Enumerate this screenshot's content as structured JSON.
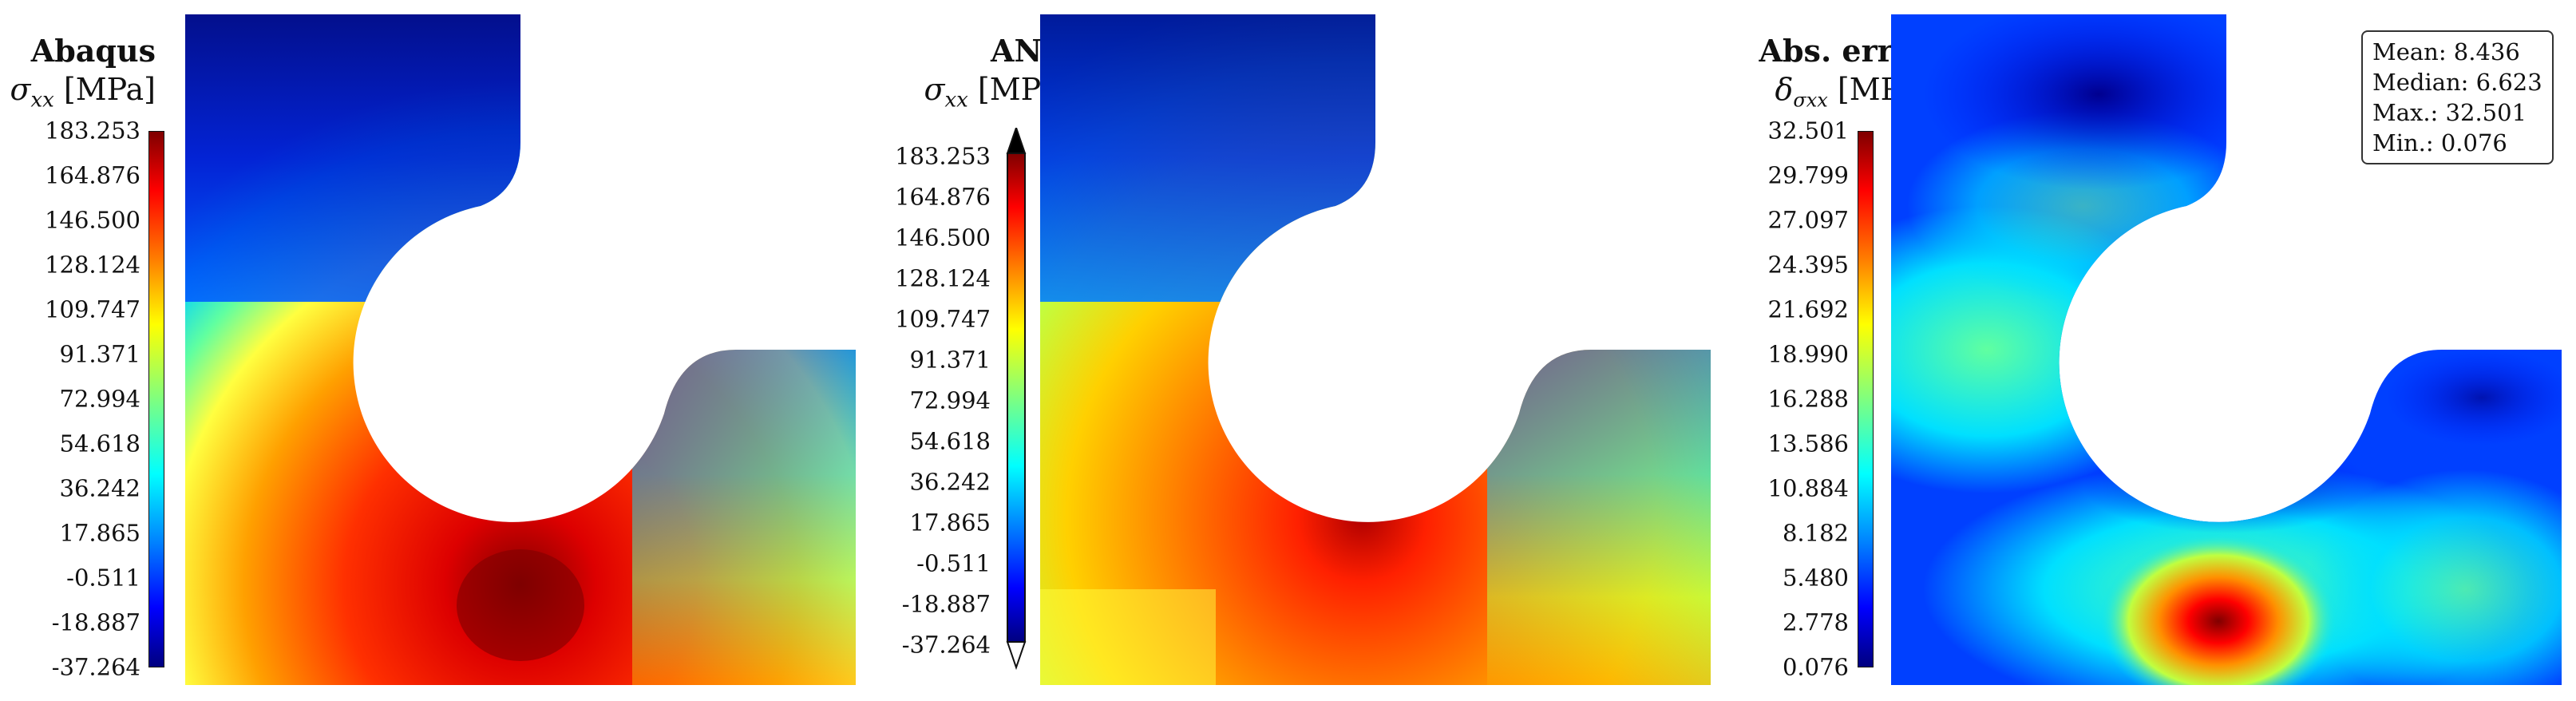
{
  "chart_data": [
    {
      "type": "heatmap",
      "title": "Abaqus",
      "quantity_label": "σ",
      "quantity_subscript": "xx",
      "unit": "[MPa]",
      "colorbar_ticks": [
        "183.253",
        "164.876",
        "146.500",
        "128.124",
        "109.747",
        "91.371",
        "72.994",
        "54.618",
        "36.242",
        "17.865",
        "-0.511",
        "-18.887",
        "-37.264"
      ],
      "colorbar_range": [
        -37.264,
        183.253
      ],
      "colormap": "jet"
    },
    {
      "type": "heatmap",
      "title": "ANN",
      "quantity_label": "σ",
      "quantity_subscript": "xx",
      "unit": "[MPa]",
      "colorbar_ticks": [
        "183.253",
        "164.876",
        "146.500",
        "128.124",
        "109.747",
        "91.371",
        "72.994",
        "54.618",
        "36.242",
        "17.865",
        "-0.511",
        "-18.887",
        "-37.264"
      ],
      "colorbar_range": [
        -37.264,
        183.253
      ],
      "colormap": "jet",
      "colorbar_extend": "both"
    },
    {
      "type": "heatmap",
      "title": "Abs. error",
      "quantity_label": "δ",
      "quantity_subscript": "σxx",
      "unit": "[MPa]",
      "colorbar_ticks": [
        "32.501",
        "29.799",
        "27.097",
        "24.395",
        "21.692",
        "18.990",
        "16.288",
        "13.586",
        "10.884",
        "8.182",
        "5.480",
        "2.778",
        "0.076"
      ],
      "colorbar_range": [
        0.076,
        32.501
      ],
      "colormap": "jet",
      "stats": {
        "mean": "Mean: 8.436",
        "median": "Median: 6.623",
        "max": "Max.: 32.501",
        "min": "Min.: 0.076"
      }
    }
  ],
  "colors": {
    "jet": [
      "#7f0000",
      "#ff0000",
      "#ff7f00",
      "#ffff00",
      "#7fff7f",
      "#00ffff",
      "#007fff",
      "#0000ff",
      "#00007f"
    ]
  }
}
